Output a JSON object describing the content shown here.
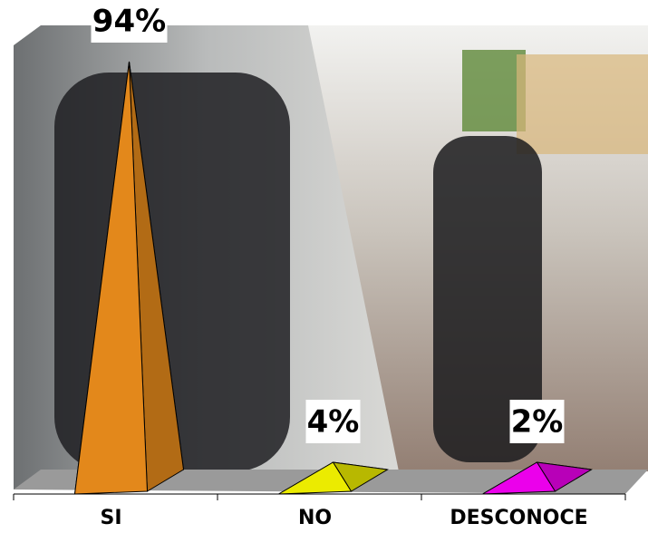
{
  "chart_data": {
    "type": "pyramid",
    "categories": [
      "SI",
      "NO",
      "DESCONOCE"
    ],
    "values": [
      94,
      4,
      2
    ],
    "value_labels": [
      "94%",
      "4%",
      "2%"
    ],
    "colors": [
      "#f7941d",
      "#ffff00",
      "#ff00ff"
    ]
  }
}
